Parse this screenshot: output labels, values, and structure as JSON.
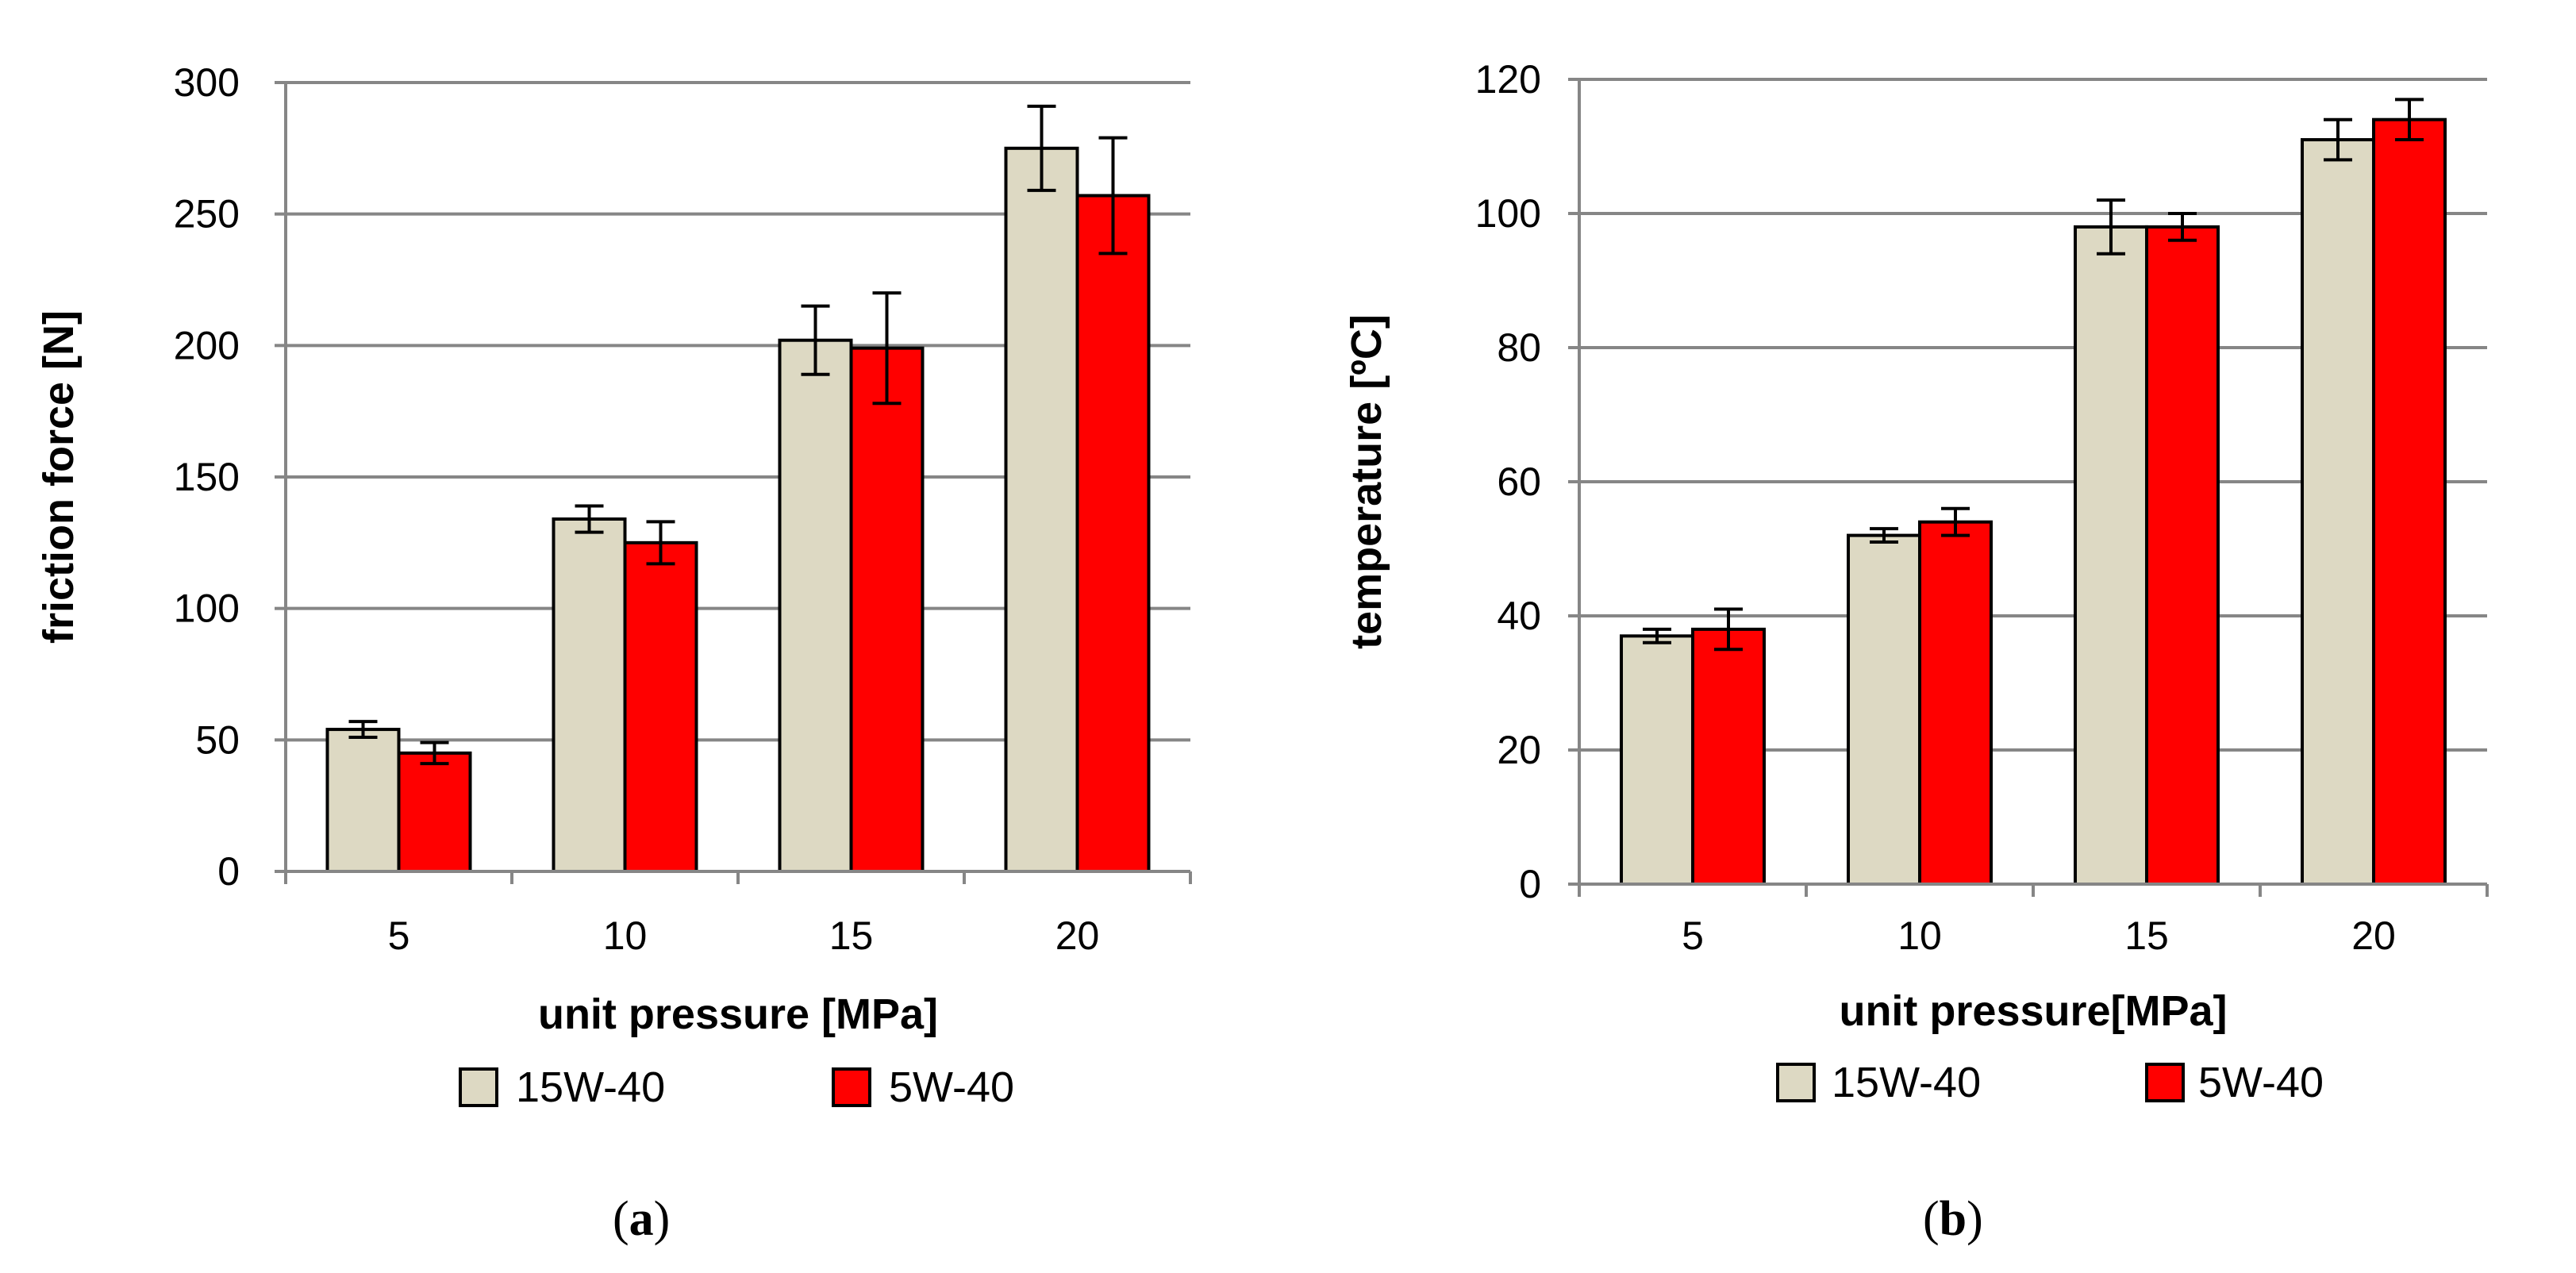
{
  "chart_data": [
    {
      "panel": "a",
      "type": "bar",
      "categories": [
        "5",
        "10",
        "15",
        "20"
      ],
      "series": [
        {
          "name": "15W-40",
          "color": "#ddd9c3",
          "values": [
            54,
            134,
            202,
            275
          ],
          "errors": [
            3,
            5,
            13,
            16
          ]
        },
        {
          "name": "5W-40",
          "color": "#ff0000",
          "values": [
            45,
            125,
            199,
            257
          ],
          "errors": [
            4,
            8,
            21,
            22
          ]
        }
      ],
      "xlabel": "unit pressure  [MPa]",
      "ylabel": "friction force  [N]",
      "ylim": [
        0,
        300
      ],
      "yticks": [
        "0",
        "50",
        "100",
        "150",
        "200",
        "250",
        "300"
      ],
      "grid": true,
      "legend_position": "bottom",
      "caption_prefix": "(",
      "caption_letter": "a",
      "caption_suffix": ")"
    },
    {
      "panel": "b",
      "type": "bar",
      "categories": [
        "5",
        "10",
        "15",
        "20"
      ],
      "series": [
        {
          "name": "15W-40",
          "color": "#ddd9c3",
          "values": [
            37,
            52,
            98,
            111
          ],
          "errors": [
            1,
            1,
            4,
            3
          ]
        },
        {
          "name": "5W-40",
          "color": "#ff0000",
          "values": [
            38,
            54,
            98,
            114
          ],
          "errors": [
            3,
            2,
            2,
            3
          ]
        }
      ],
      "xlabel": "unit pressure[MPa]",
      "ylabel": "temperature  [ºC]",
      "ylim": [
        0,
        120
      ],
      "yticks": [
        "0",
        "20",
        "40",
        "60",
        "80",
        "100",
        "120"
      ],
      "grid": true,
      "legend_position": "bottom",
      "caption_prefix": "(",
      "caption_letter": "b",
      "caption_suffix": ")"
    }
  ]
}
